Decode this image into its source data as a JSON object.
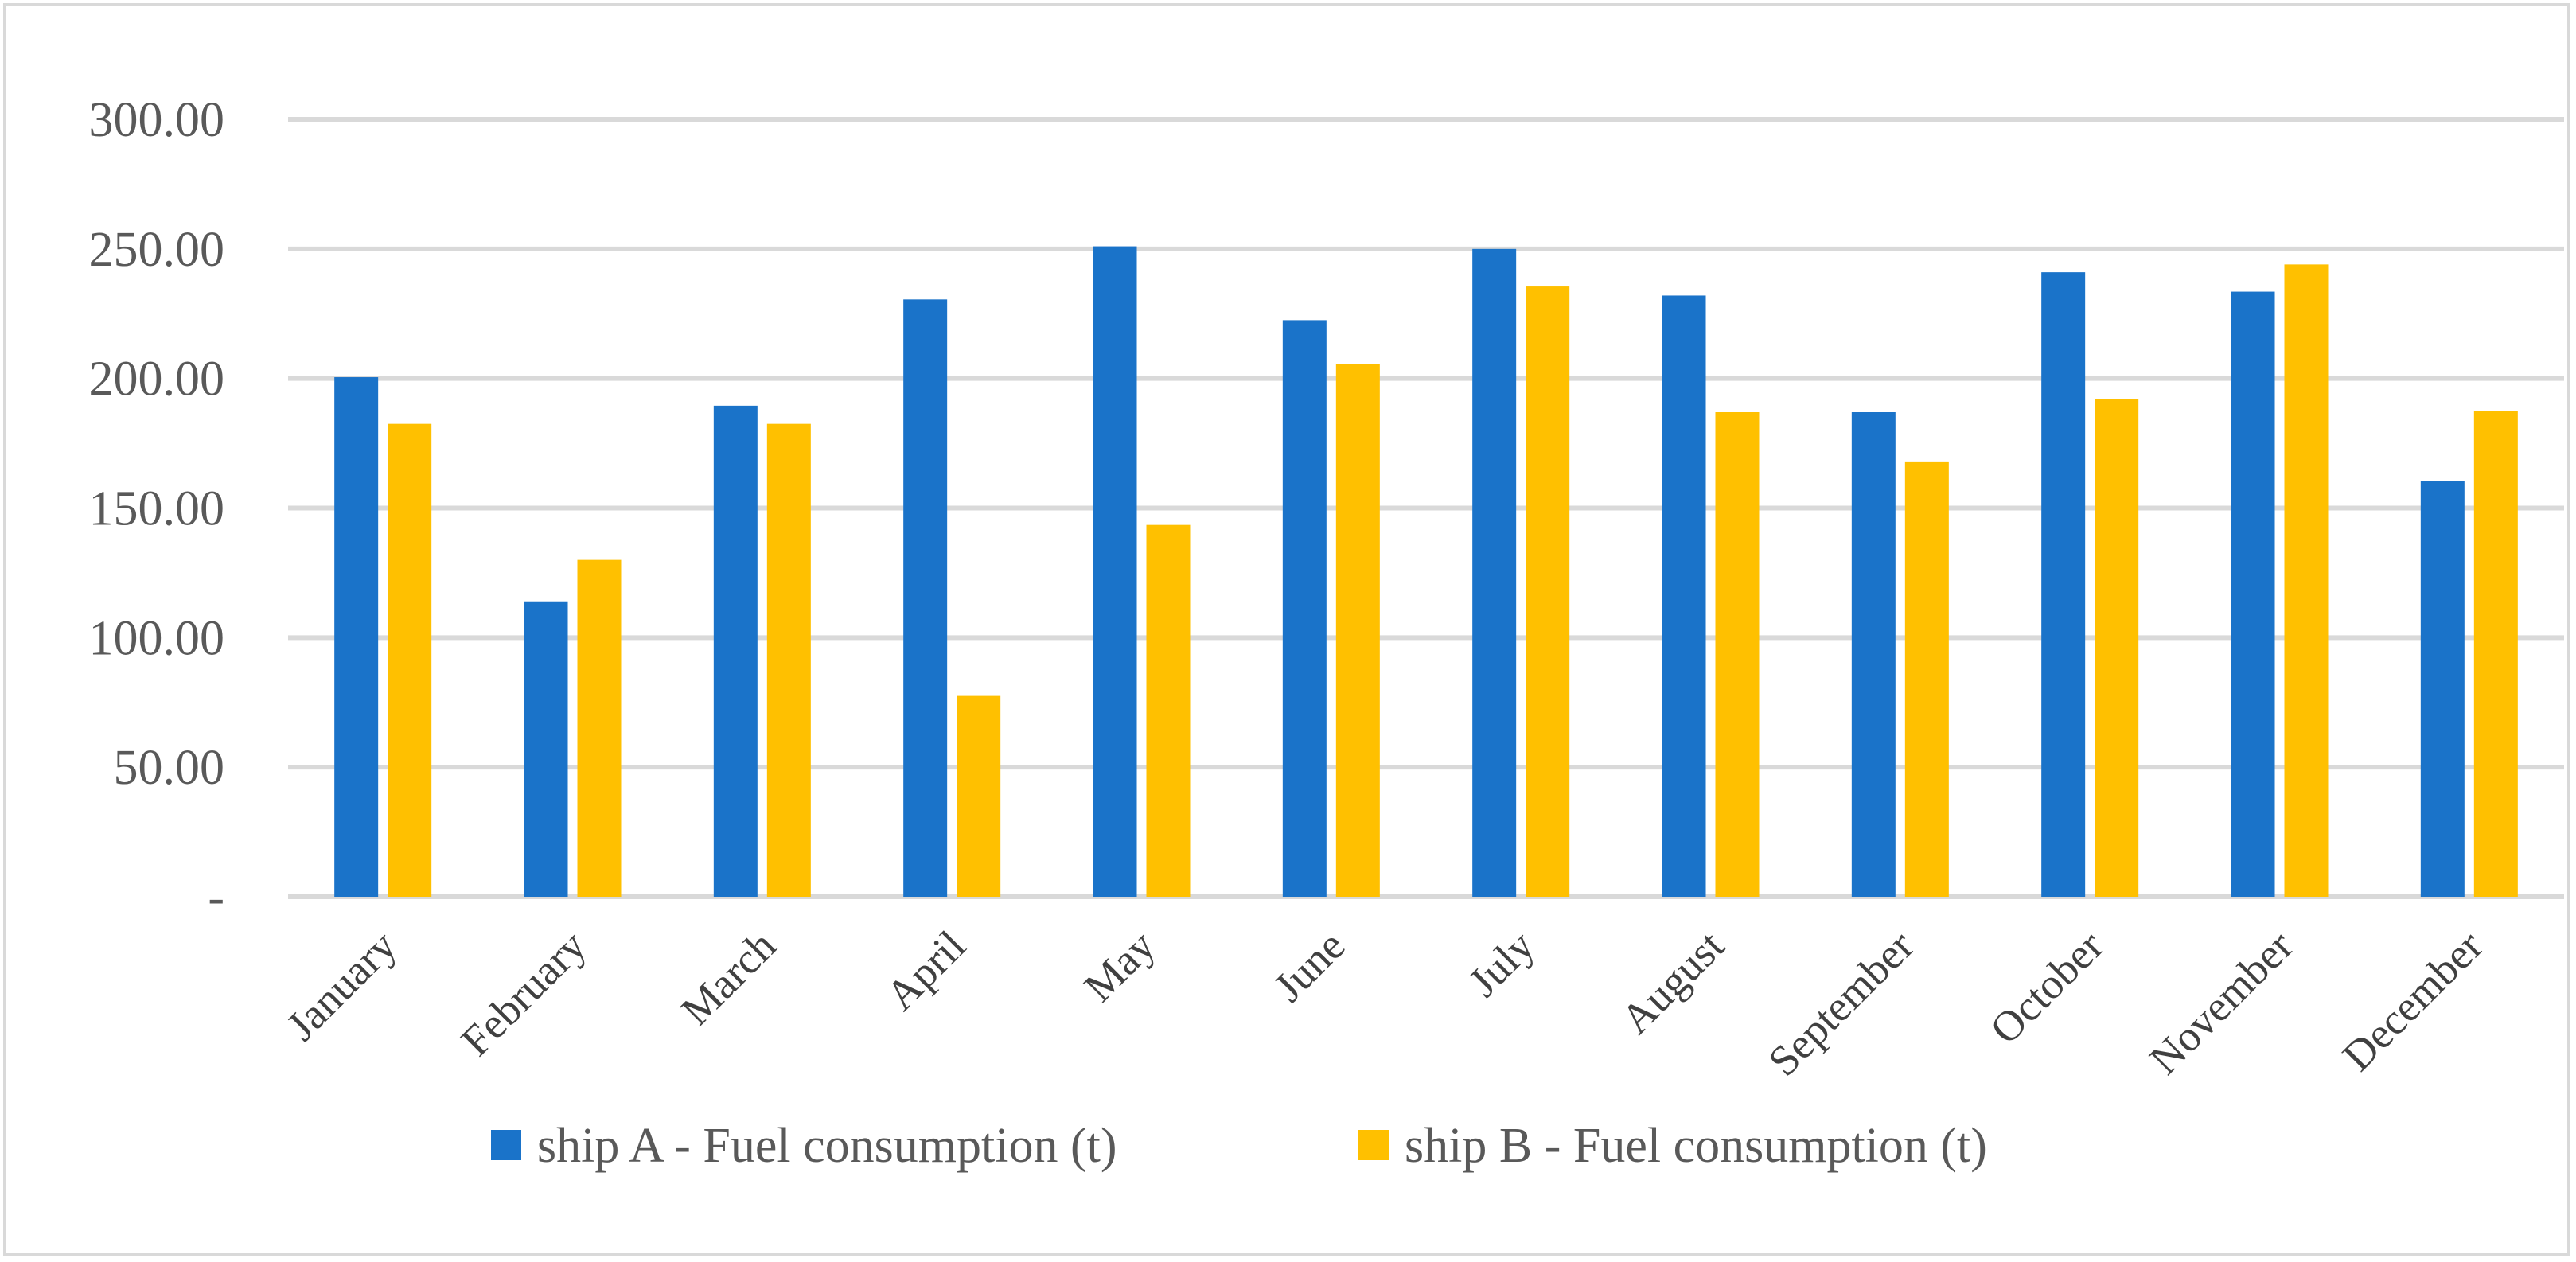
{
  "chart_data": {
    "type": "bar",
    "title": "",
    "xlabel": "",
    "ylabel": "",
    "ylim": [
      0,
      300
    ],
    "ytick_values": [
      0,
      50,
      100,
      150,
      200,
      250,
      300
    ],
    "ytick_labels": [
      "-",
      "50.00",
      "100.00",
      "150.00",
      "200.00",
      "250.00",
      "300.00"
    ],
    "categories": [
      "January",
      "February",
      "March",
      "April",
      "May",
      "June",
      "July",
      "August",
      "September",
      "October",
      "November",
      "December"
    ],
    "series": [
      {
        "name": "ship A - Fuel consumption (t)",
        "color": "#1a73c9",
        "values": [
          200.5,
          114,
          189.5,
          230.5,
          251,
          222.5,
          250,
          232,
          187,
          241,
          233.5,
          160.5
        ]
      },
      {
        "name": "ship B - Fuel consumption (t)",
        "color": "#ffc000",
        "values": [
          182.5,
          130,
          182.5,
          77.5,
          143.5,
          205.5,
          235.5,
          187,
          168,
          192,
          244,
          187.5
        ]
      }
    ],
    "grid": true,
    "legend_position": "bottom"
  }
}
